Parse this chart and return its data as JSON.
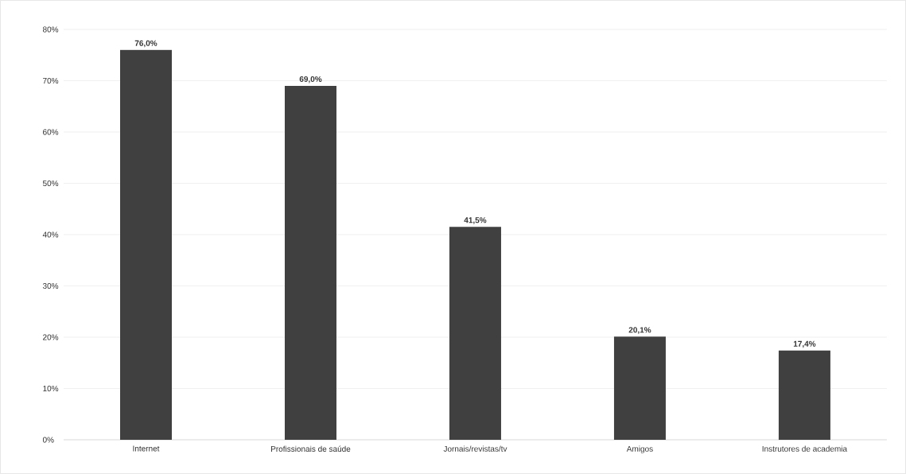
{
  "chart_data": {
    "type": "bar",
    "categories": [
      "Internet",
      "Profissionais de saúde",
      "Jornais/revistas/tv",
      "Amigos",
      "Instrutores de academia"
    ],
    "values": [
      76.0,
      69.0,
      41.5,
      20.1,
      17.4
    ],
    "value_labels": [
      "76,0%",
      "69,0%",
      "41,5%",
      "20,1%",
      "17,4%"
    ],
    "color": "#404040",
    "ylim": [
      0,
      80
    ],
    "yticks": [
      {
        "value": 0,
        "label": "0%"
      },
      {
        "value": 10,
        "label": "10%"
      },
      {
        "value": 20,
        "label": "20%"
      },
      {
        "value": 30,
        "label": "30%"
      },
      {
        "value": 40,
        "label": "40%"
      },
      {
        "value": 50,
        "label": "50%"
      },
      {
        "value": 60,
        "label": "60%"
      },
      {
        "value": 70,
        "label": "70%"
      },
      {
        "value": 80,
        "label": "80%"
      }
    ],
    "grid": "y"
  }
}
